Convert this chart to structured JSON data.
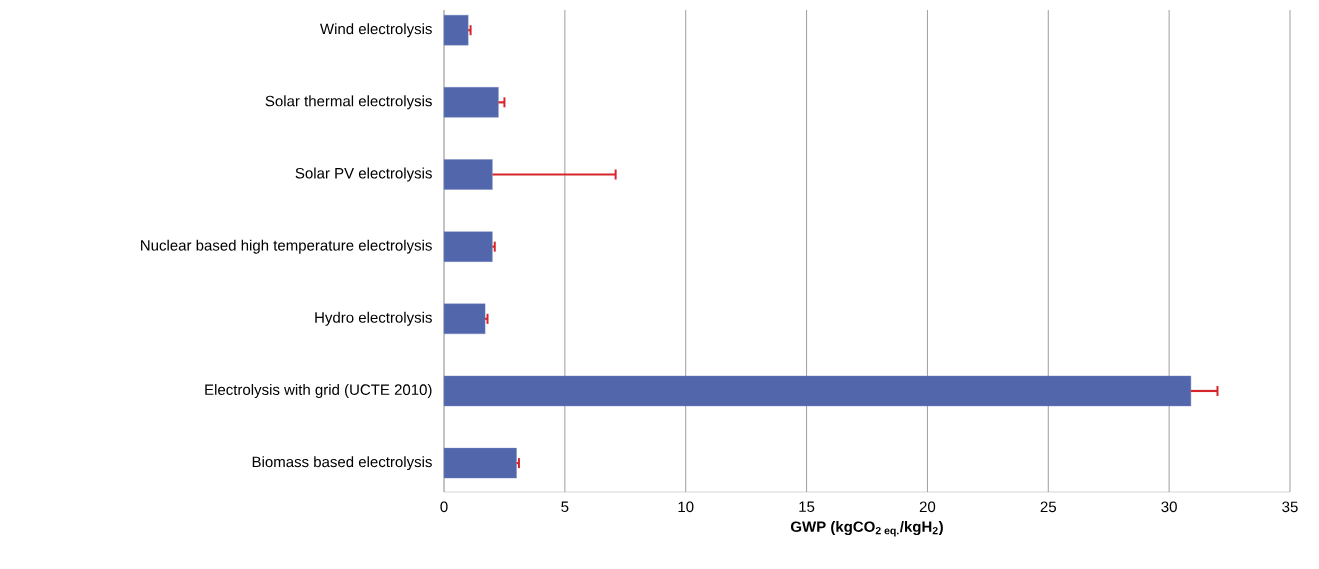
{
  "chart_data": {
    "type": "bar",
    "orientation": "horizontal",
    "xlabel": "GWP (kgCO$_{2 eq.}$/kgH$_{2}$)",
    "categories": [
      "Wind electrolysis",
      "Solar thermal electrolysis",
      "Solar PV electrolysis",
      "Nuclear based high temperature electrolysis",
      "Hydro electrolysis",
      "Electrolysis with grid (UCTE 2010)",
      "Biomass based electrolysis"
    ],
    "values": [
      1.0,
      2.25,
      2.0,
      2.0,
      1.7,
      30.9,
      3.0
    ],
    "errors": [
      [
        1.0,
        1.1
      ],
      [
        2.25,
        2.5
      ],
      [
        2.0,
        7.1
      ],
      [
        2.0,
        2.1
      ],
      [
        1.7,
        1.8
      ],
      [
        30.9,
        32.0
      ],
      [
        3.0,
        3.1
      ]
    ],
    "color": "#5266ac",
    "xlim": [
      0,
      35
    ],
    "xticks": [
      0,
      5,
      10,
      15,
      20,
      25,
      30,
      35
    ],
    "grid": "x"
  }
}
